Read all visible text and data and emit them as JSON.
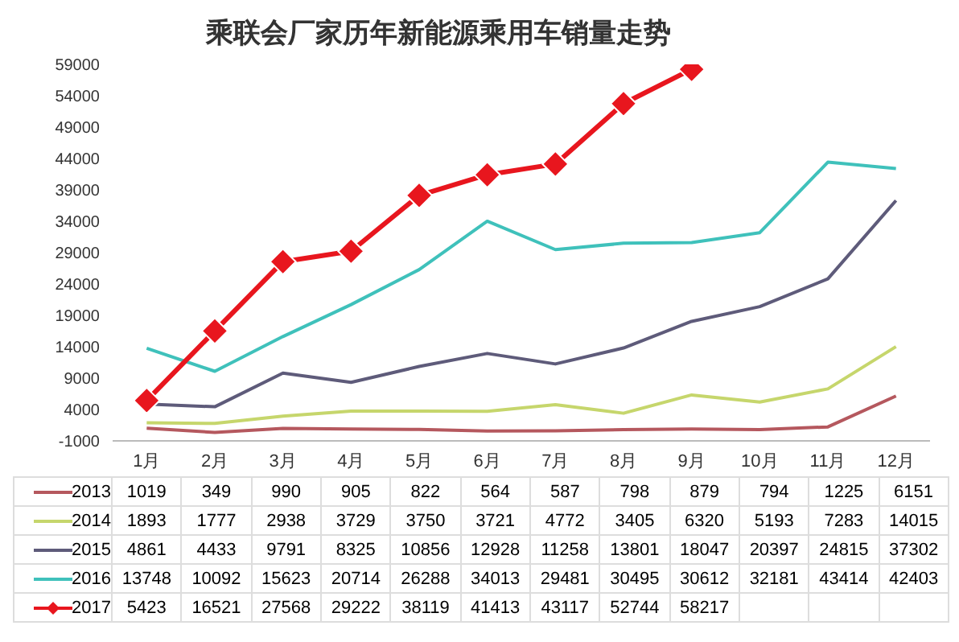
{
  "chart_data": {
    "type": "line",
    "title": "乘联会厂家历年新能源乘用车销量走势",
    "categories": [
      "1月",
      "2月",
      "3月",
      "4月",
      "5月",
      "6月",
      "7月",
      "8月",
      "9月",
      "10月",
      "11月",
      "12月"
    ],
    "series": [
      {
        "name": "2013",
        "color": "#b5585e",
        "marker": "none",
        "values": [
          1019,
          349,
          990,
          905,
          822,
          564,
          587,
          798,
          879,
          794,
          1225,
          6151
        ]
      },
      {
        "name": "2014",
        "color": "#c6d66c",
        "marker": "none",
        "values": [
          1893,
          1777,
          2938,
          3729,
          3750,
          3721,
          4772,
          3405,
          6320,
          5193,
          7283,
          14015
        ]
      },
      {
        "name": "2015",
        "color": "#5e5b7a",
        "marker": "none",
        "values": [
          4861,
          4433,
          9791,
          8325,
          10856,
          12928,
          11258,
          13801,
          18047,
          20397,
          24815,
          37302
        ]
      },
      {
        "name": "2016",
        "color": "#3fc1bb",
        "marker": "none",
        "values": [
          13748,
          10092,
          15623,
          20714,
          26288,
          34013,
          29481,
          30495,
          30612,
          32181,
          43414,
          42403
        ]
      },
      {
        "name": "2017",
        "color": "#e8161e",
        "marker": "diamond",
        "values": [
          5423,
          16521,
          27568,
          29222,
          38119,
          41413,
          43117,
          52744,
          58217,
          null,
          null,
          null
        ]
      }
    ],
    "ylim": [
      -1000,
      59000
    ],
    "yticks": [
      -1000,
      4000,
      9000,
      14000,
      19000,
      24000,
      29000,
      34000,
      39000,
      44000,
      49000,
      54000,
      59000
    ],
    "data_labels": true,
    "legend": "bottom"
  }
}
